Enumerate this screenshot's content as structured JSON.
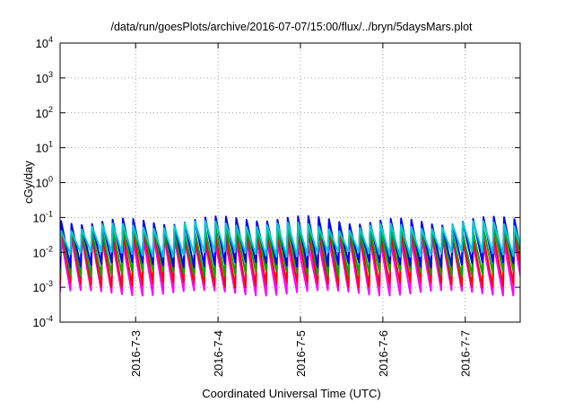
{
  "chart_data": {
    "type": "line",
    "title": "/data/run/goesPlots/archive/2016-07-07/15:00/flux/../bryn/5daysMars.plot",
    "xlabel": "Coordinated Universal Time (UTC)",
    "ylabel": "cGy/day",
    "yscale": "log",
    "ylim": [
      0.0001,
      10000
    ],
    "xlim": [
      "2016-07-02 02:00",
      "2016-07-07 16:00"
    ],
    "grid": true,
    "x_ticks": [
      {
        "date": "2016-07-03",
        "label": "2016-7-3"
      },
      {
        "date": "2016-07-04",
        "label": "2016-7-4"
      },
      {
        "date": "2016-07-05",
        "label": "2016-7-5"
      },
      {
        "date": "2016-07-06",
        "label": "2016-7-6"
      },
      {
        "date": "2016-07-07",
        "label": "2016-7-7"
      }
    ],
    "y_ticks": [
      {
        "value": 0.0001,
        "base": "10",
        "exp": "-4"
      },
      {
        "value": 0.001,
        "base": "10",
        "exp": "-3"
      },
      {
        "value": 0.01,
        "base": "10",
        "exp": "-2"
      },
      {
        "value": 0.1,
        "base": "10",
        "exp": "-1"
      },
      {
        "value": 1,
        "base": "10",
        "exp": "0"
      },
      {
        "value": 10,
        "base": "10",
        "exp": "1"
      },
      {
        "value": 100,
        "base": "10",
        "exp": "2"
      },
      {
        "value": 1000,
        "base": "10",
        "exp": "3"
      },
      {
        "value": 10000,
        "base": "10",
        "exp": "4"
      }
    ],
    "sawtooth_period_hours": 3,
    "series": [
      {
        "color": "#ff00ff",
        "peak": 0.022,
        "trough": 0.0007
      },
      {
        "color": "#ff0000",
        "peak": 0.035,
        "trough": 0.0012
      },
      {
        "color": "#00aa00",
        "peak": 0.05,
        "trough": 0.0025
      },
      {
        "color": "#0000ff",
        "peak": 0.085,
        "trough": 0.0045
      },
      {
        "color": "#00cccc",
        "peak": 0.06,
        "trough": 0.009
      }
    ]
  }
}
